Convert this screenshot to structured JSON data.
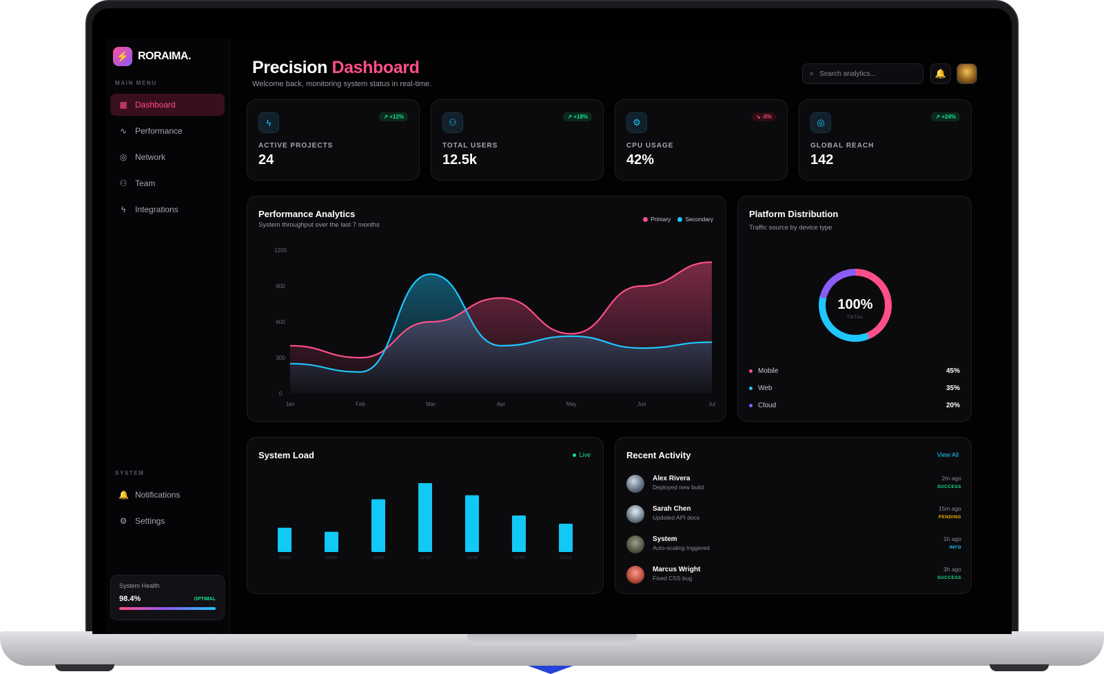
{
  "brand": {
    "name": "RORAIMA.",
    "logo_glyph": "⚡"
  },
  "sidebar": {
    "main_label": "MAIN MENU",
    "items": [
      {
        "label": "Dashboard",
        "icon": "grid-icon",
        "glyph": "▦",
        "active": true
      },
      {
        "label": "Performance",
        "icon": "activity-icon",
        "glyph": "∿"
      },
      {
        "label": "Network",
        "icon": "globe-icon",
        "glyph": "◎"
      },
      {
        "label": "Team",
        "icon": "users-icon",
        "glyph": "⚇"
      },
      {
        "label": "Integrations",
        "icon": "bolt-icon",
        "glyph": "ϟ"
      }
    ],
    "system_label": "SYSTEM",
    "system_items": [
      {
        "label": "Notifications",
        "icon": "bell-icon",
        "glyph": "🔔"
      },
      {
        "label": "Settings",
        "icon": "gear-icon",
        "glyph": "⚙"
      }
    ],
    "health": {
      "title": "System Health",
      "value": "98.4%",
      "status": "OPTIMAL"
    }
  },
  "header": {
    "title_plain": "Precision",
    "title_accent": "Dashboard",
    "subtitle": "Welcome back, monitoring system status in real-time.",
    "search_placeholder": "Search analytics..."
  },
  "stats": [
    {
      "label": "ACTIVE PROJECTS",
      "value": "24",
      "change": "↗ +12%",
      "trend": "up",
      "icon": "bolt-icon",
      "glyph": "ϟ"
    },
    {
      "label": "TOTAL USERS",
      "value": "12.5k",
      "change": "↗ +18%",
      "trend": "up",
      "icon": "users-icon",
      "glyph": "⚇"
    },
    {
      "label": "CPU USAGE",
      "value": "42%",
      "change": "↘ -5%",
      "trend": "down",
      "icon": "cpu-icon",
      "glyph": "⚙"
    },
    {
      "label": "GLOBAL REACH",
      "value": "142",
      "change": "↗ +24%",
      "trend": "up",
      "icon": "globe-icon",
      "glyph": "◎"
    }
  ],
  "performance": {
    "title": "Performance Analytics",
    "subtitle": "System throughput over the last 7 months",
    "legend": [
      "Primary",
      "Secondary"
    ]
  },
  "platform": {
    "title": "Platform Distribution",
    "subtitle": "Traffic source by device type",
    "center_value": "100%",
    "center_label": "TOTAL",
    "items": [
      {
        "label": "Mobile",
        "pct": "45%",
        "color": "#ff4f8b"
      },
      {
        "label": "Web",
        "pct": "35%",
        "color": "#1ec8ff"
      },
      {
        "label": "Cloud",
        "pct": "20%",
        "color": "#8b5cf6"
      }
    ]
  },
  "system_load": {
    "title": "System Load",
    "status": "Live"
  },
  "activity": {
    "title": "Recent Activity",
    "view_all": "View All",
    "items": [
      {
        "name": "Alex Rivera",
        "desc": "Deployed new build",
        "time": "2m ago",
        "status": "SUCCESS",
        "color": "#19e08a"
      },
      {
        "name": "Sarah Chen",
        "desc": "Updated API docs",
        "time": "15m ago",
        "status": "PENDING",
        "color": "#f5b400"
      },
      {
        "name": "System",
        "desc": "Auto-scaling triggered",
        "time": "1h ago",
        "status": "INFO",
        "color": "#1ec8ff"
      },
      {
        "name": "Marcus Wright",
        "desc": "Fixed CSS bug",
        "time": "3h ago",
        "status": "SUCCESS",
        "color": "#19e08a"
      }
    ]
  },
  "colors": {
    "primary": "#ff4f8b",
    "secondary": "#1ec8ff",
    "tertiary": "#8b5cf6",
    "success": "#19e08a",
    "bg": "#020203"
  },
  "chart_data": [
    {
      "type": "area",
      "x": [
        "Jan",
        "Feb",
        "Mar",
        "Apr",
        "May",
        "Jun",
        "Jul"
      ],
      "yticks": [
        0,
        300,
        600,
        900,
        1200
      ],
      "ylim": [
        0,
        1200
      ],
      "series": [
        {
          "name": "Primary",
          "values": [
            400,
            300,
            600,
            800,
            500,
            900,
            1100
          ]
        },
        {
          "name": "Secondary",
          "values": [
            250,
            180,
            1000,
            400,
            480,
            380,
            430
          ]
        }
      ]
    },
    {
      "type": "pie",
      "categories": [
        "Mobile",
        "Web",
        "Cloud"
      ],
      "values": [
        45,
        35,
        20
      ]
    },
    {
      "type": "bar",
      "categories": [
        "00:00",
        "04:00",
        "08:00",
        "12:00",
        "16:00",
        "20:00",
        "23:59"
      ],
      "values": [
        30,
        25,
        65,
        85,
        70,
        45,
        35
      ]
    }
  ]
}
